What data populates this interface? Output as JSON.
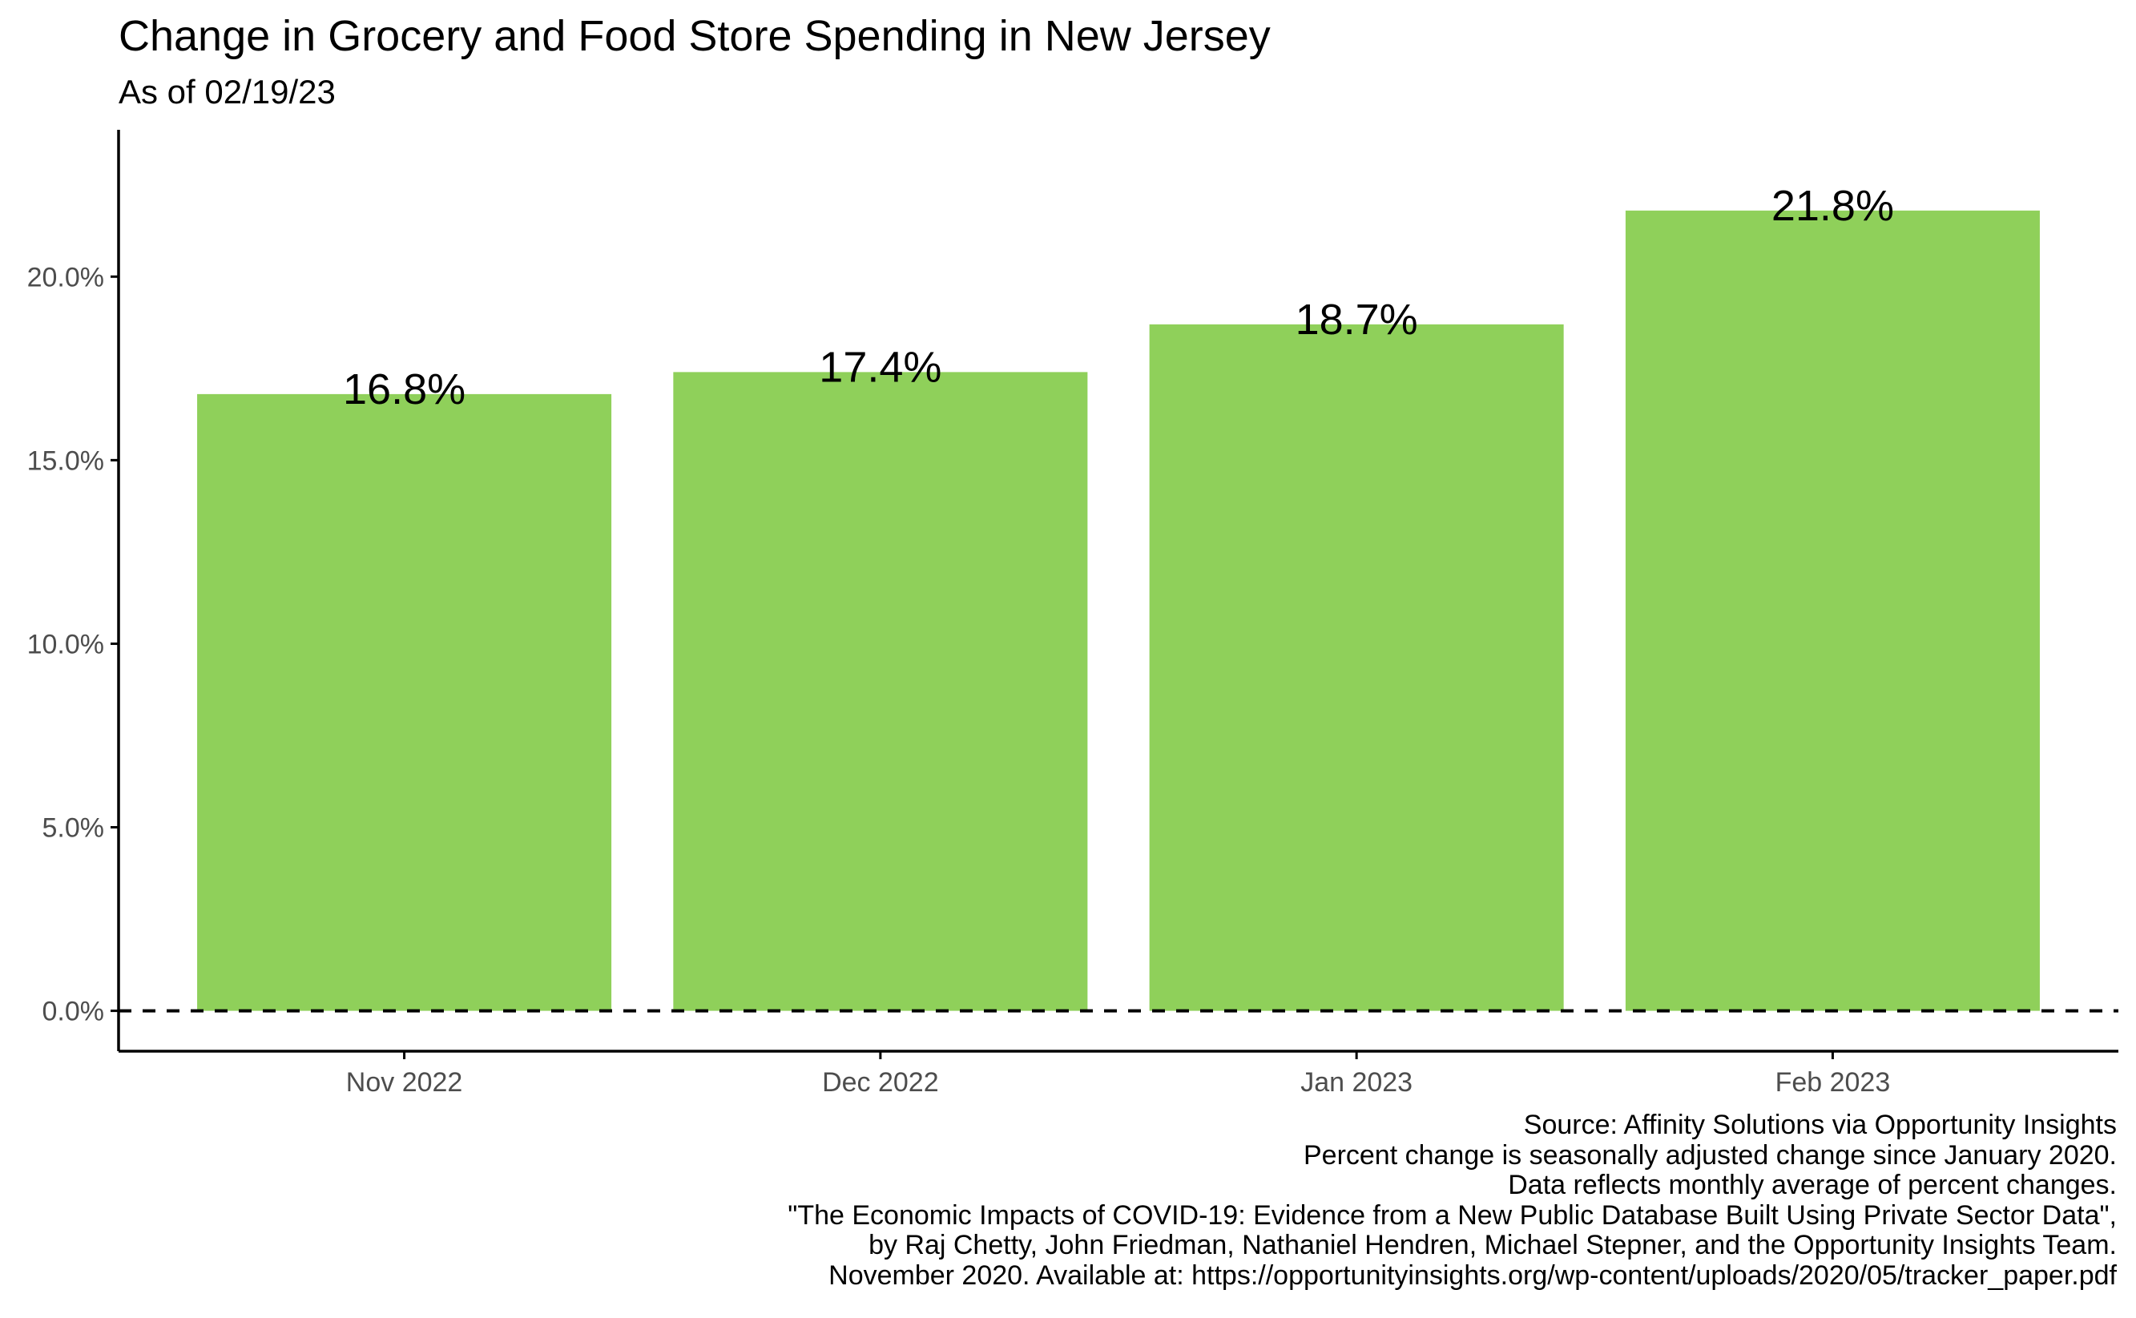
{
  "title": "Change in Grocery and Food Store Spending in New Jersey",
  "subtitle": "As of 02/19/23",
  "caption": [
    "Source: Affinity Solutions via Opportunity Insights",
    "Percent change is seasonally adjusted change since January 2020.",
    "Data reflects monthly average of percent changes.",
    "\"The Economic Impacts of COVID-19: Evidence from a New Public Database Built Using Private Sector Data\",",
    "by Raj Chetty, John Friedman, Nathaniel Hendren, Michael Stepner, and the Opportunity Insights Team.",
    "November 2020. Available at: https://opportunityinsights.org/wp-content/uploads/2020/05/tracker_paper.pdf"
  ],
  "colors": {
    "bar": "#8fd05a",
    "axis": "#000000",
    "tick_label": "#4d4d4d",
    "reference_line": "#000000"
  },
  "chart_data": {
    "type": "bar",
    "title": "Change in Grocery and Food Store Spending in New Jersey",
    "subtitle": "As of 02/19/23",
    "xlabel": "",
    "ylabel": "",
    "categories": [
      "Nov 2022",
      "Dec 2022",
      "Jan 2023",
      "Feb 2023"
    ],
    "values": [
      16.8,
      17.4,
      18.7,
      21.8
    ],
    "value_labels": [
      "16.8%",
      "17.4%",
      "18.7%",
      "21.8%"
    ],
    "ylim": [
      -1.1,
      24.0
    ],
    "y_ticks": [
      0,
      5,
      10,
      15,
      20
    ],
    "y_tick_labels": [
      "0.0%",
      "5.0%",
      "10.0%",
      "15.0%",
      "20.0%"
    ],
    "reference_line": {
      "y": 0,
      "style": "dashed"
    },
    "grid": false,
    "legend": "none"
  }
}
